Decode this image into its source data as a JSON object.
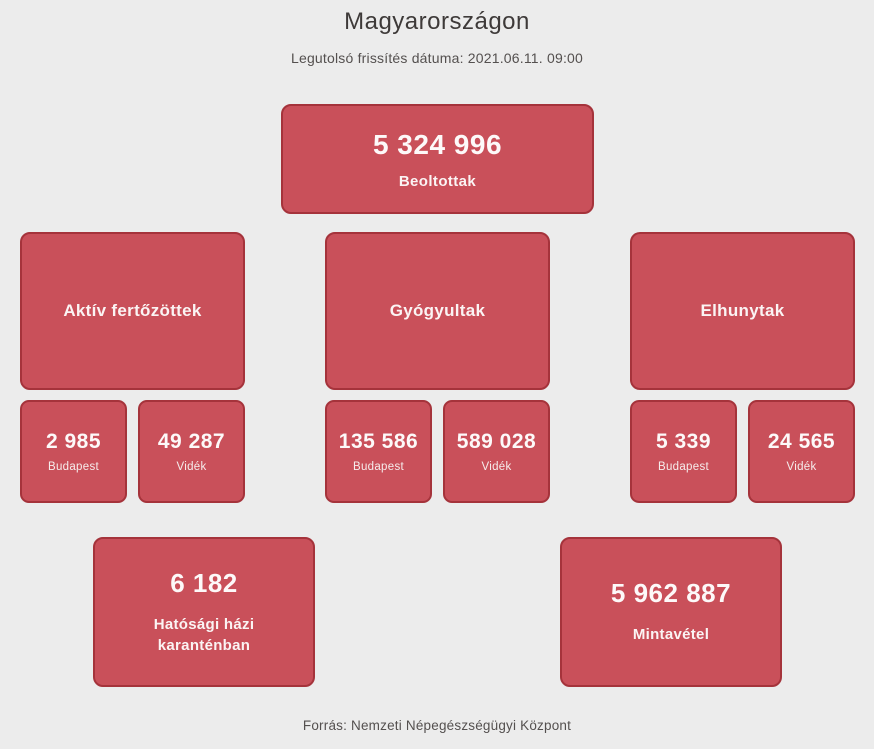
{
  "page": {
    "title": "Magyarországon",
    "subtitle": "Legutolsó frissítés dátuma: 2021.06.11. 09:00",
    "footer": "Forrás: Nemzeti Népegészségügyi Központ"
  },
  "stats": {
    "beoltottak": {
      "value": "5 324 996",
      "label": "Beoltottak"
    },
    "groups": [
      {
        "label": "Aktív fertőzöttek",
        "breakdown": [
          {
            "value": "2 985",
            "label": "Budapest"
          },
          {
            "value": "49 287",
            "label": "Vidék"
          }
        ]
      },
      {
        "label": "Gyógyultak",
        "breakdown": [
          {
            "value": "135 586",
            "label": "Budapest"
          },
          {
            "value": "589 028",
            "label": "Vidék"
          }
        ]
      },
      {
        "label": "Elhunytak",
        "breakdown": [
          {
            "value": "5 339",
            "label": "Budapest"
          },
          {
            "value": "24 565",
            "label": "Vidék"
          }
        ]
      }
    ],
    "karanten": {
      "value": "6 182",
      "label": "Hatósági házi karanténban"
    },
    "mintavetel": {
      "value": "5 962 887",
      "label": "Mintavétel"
    }
  },
  "colors": {
    "background": "#ECECEC",
    "card_fill": "#C9505A",
    "card_border": "#A5333B",
    "card_text": "#FBF4F4",
    "text_dark": "#3E3A39",
    "text_muted": "#54504F"
  }
}
